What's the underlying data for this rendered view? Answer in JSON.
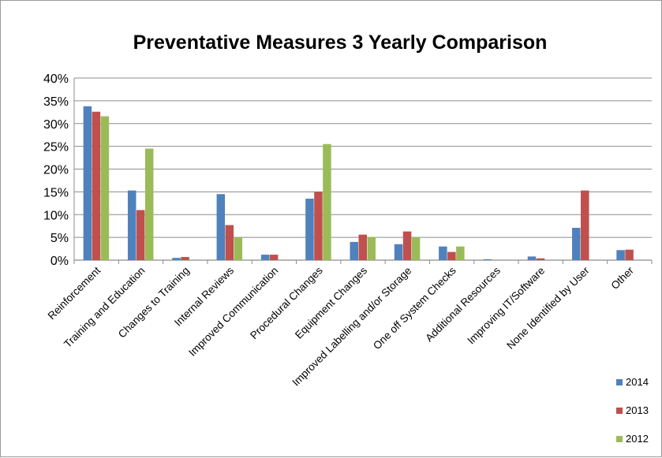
{
  "chart_data": {
    "type": "bar",
    "title": "Preventative Measures 3 Yearly Comparison",
    "xlabel": "",
    "ylabel": "",
    "ylim": [
      0,
      40
    ],
    "yticks": [
      "0%",
      "5%",
      "10%",
      "15%",
      "20%",
      "25%",
      "30%",
      "35%",
      "40%"
    ],
    "grid": true,
    "legend_position": "bottom-right",
    "categories": [
      "Reinforcement",
      "Training and Education",
      "Changes to Training",
      "Internal Reviews",
      "Improved Communication",
      "Procedural Changes",
      "Equipment Changes",
      "Improved Labelling and/or Storage",
      "One off System Checks",
      "Additional Resources",
      "Improving IT/Software",
      "None Identified by User",
      "Other"
    ],
    "series": [
      {
        "name": "2014",
        "color": "#4f81bd",
        "values": [
          33.8,
          15.3,
          0.5,
          14.5,
          1.2,
          13.5,
          4.0,
          3.5,
          3.0,
          0.2,
          0.8,
          7.1,
          2.2
        ]
      },
      {
        "name": "2013",
        "color": "#c0504d",
        "values": [
          32.6,
          11.0,
          0.7,
          7.7,
          1.2,
          15.0,
          5.6,
          6.3,
          1.8,
          0.0,
          0.4,
          15.3,
          2.3
        ]
      },
      {
        "name": "2012",
        "color": "#9bbb59",
        "values": [
          31.6,
          24.5,
          0.0,
          5.0,
          0.0,
          25.5,
          5.1,
          5.0,
          3.0,
          0.0,
          0.0,
          0.0,
          0.0
        ]
      }
    ]
  }
}
